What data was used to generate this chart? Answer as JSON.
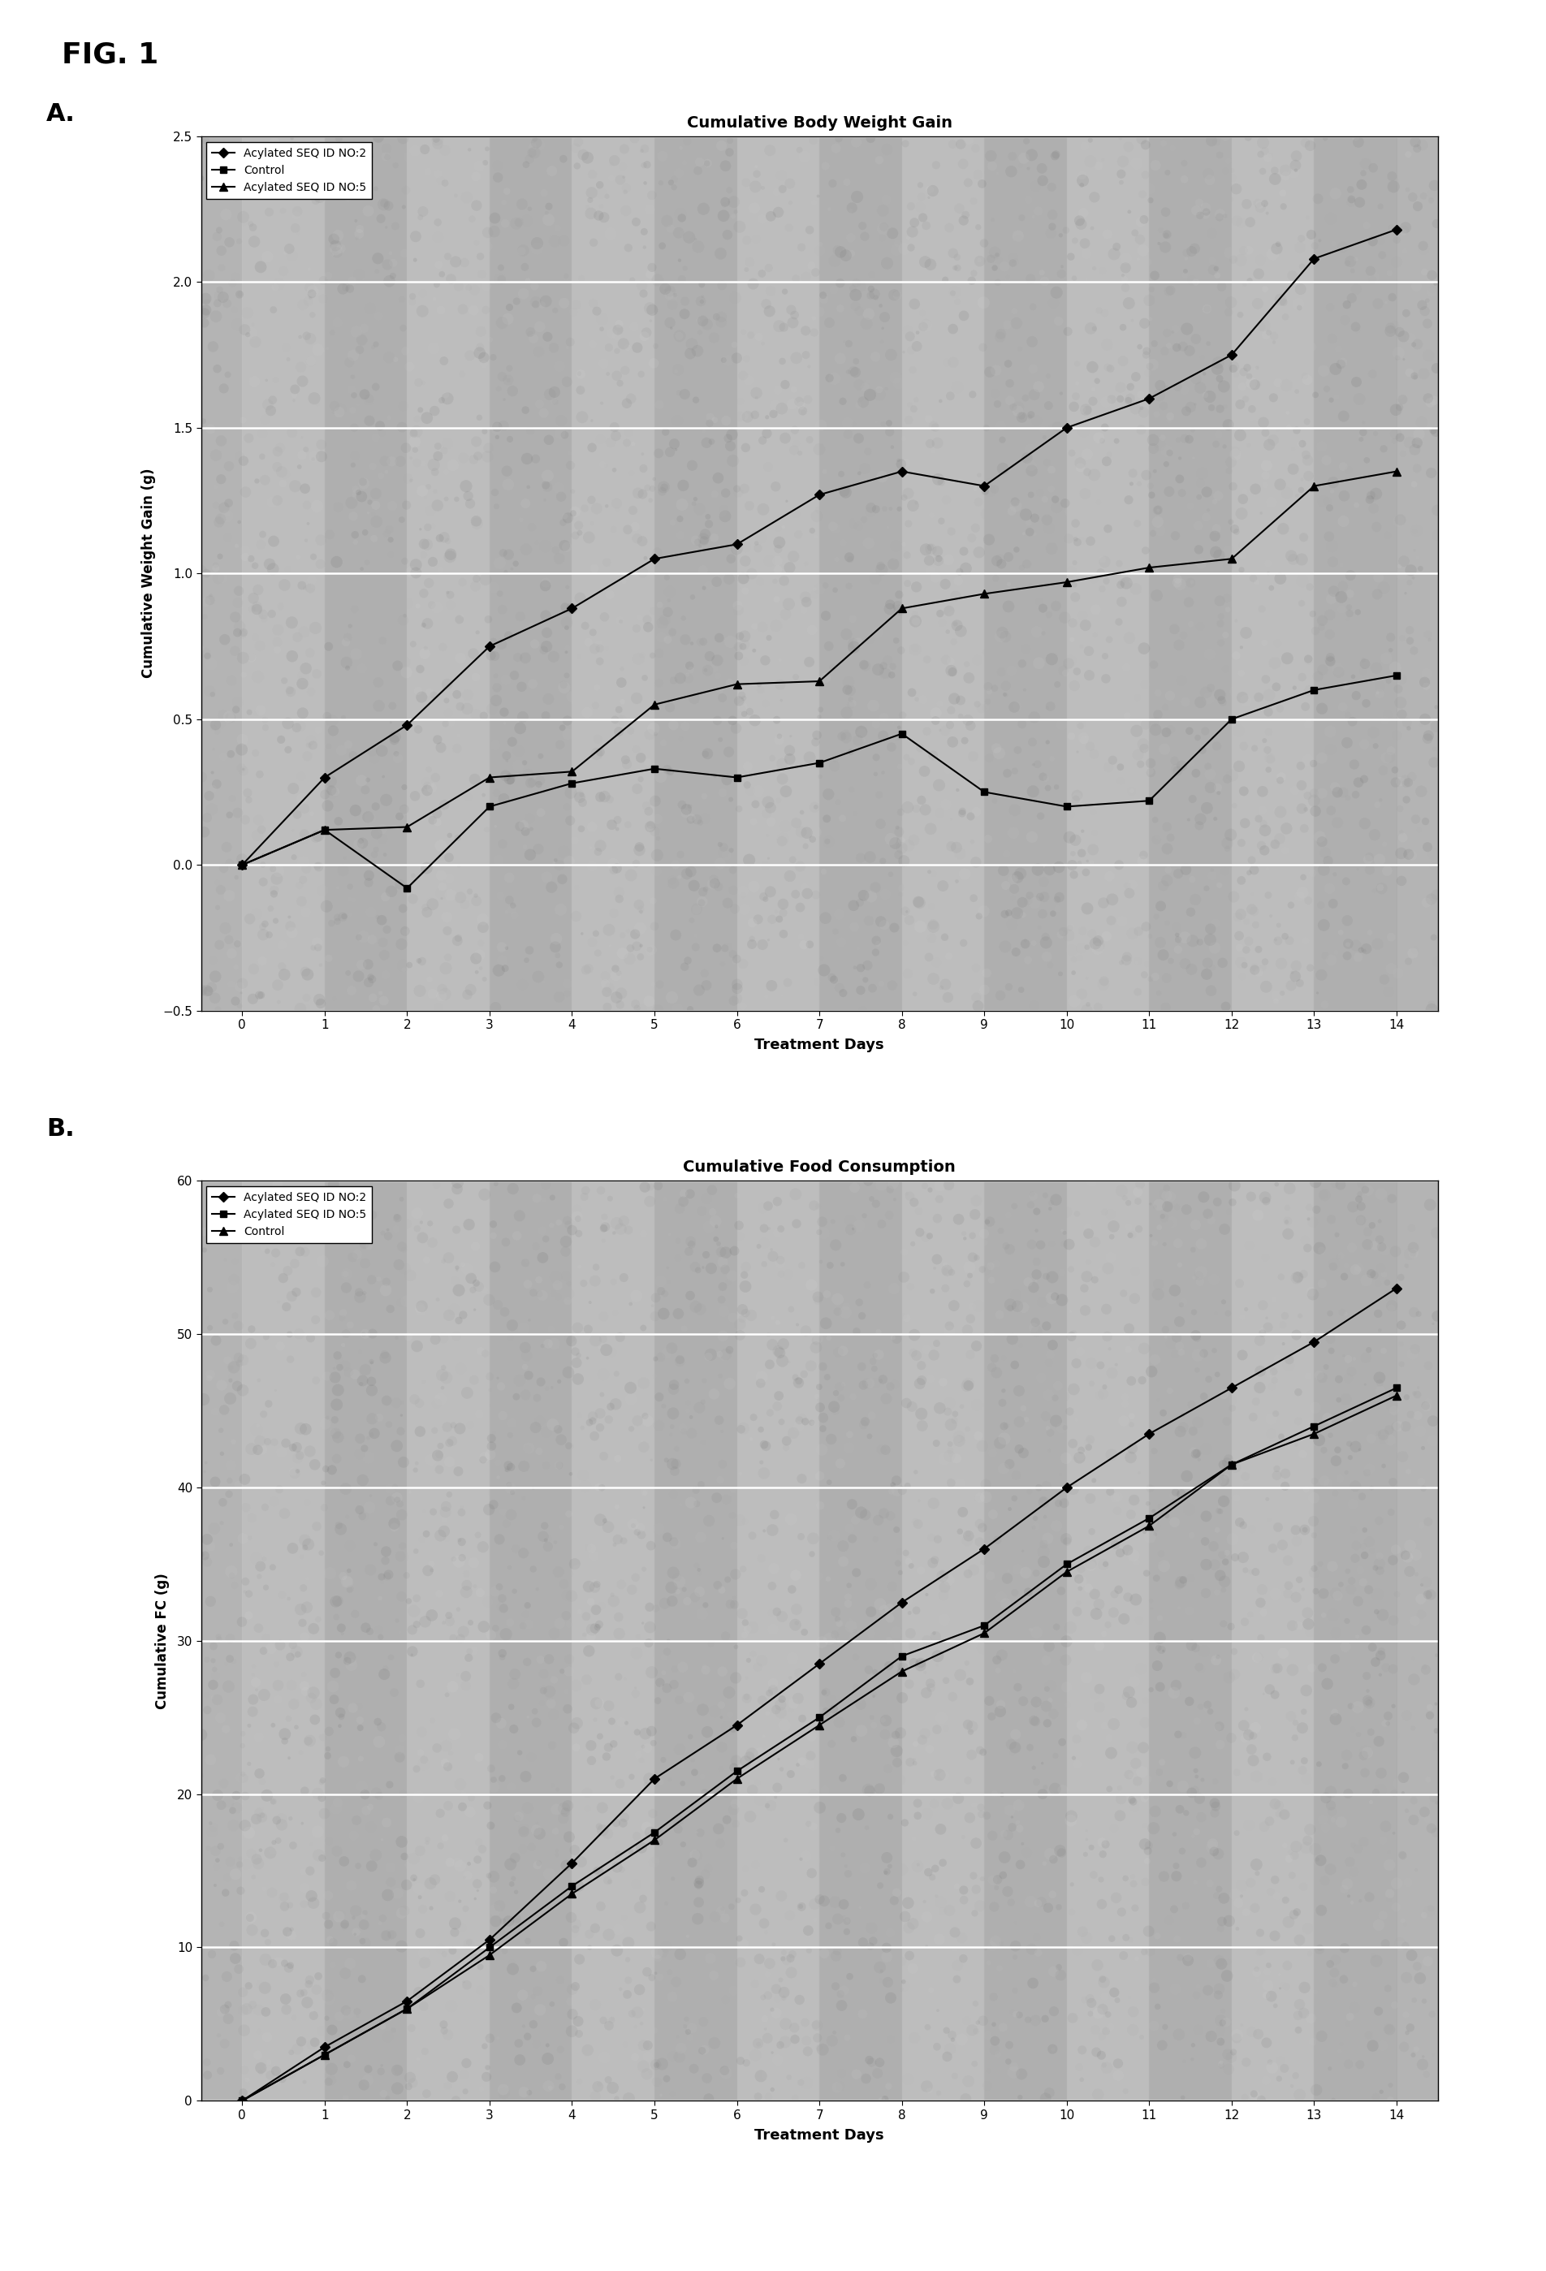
{
  "fig_label": "FIG. 1",
  "panel_A_label": "A.",
  "panel_B_label": "B.",
  "panel_A": {
    "title": "Cumulative Body Weight Gain",
    "xlabel": "Treatment Days",
    "ylabel": "Cumulative Weight Gain (g)",
    "xlim": [
      -0.5,
      14.5
    ],
    "ylim": [
      -0.5,
      2.5
    ],
    "xticks": [
      0,
      1,
      2,
      3,
      4,
      5,
      6,
      7,
      8,
      9,
      10,
      11,
      12,
      13,
      14
    ],
    "yticks": [
      -0.5,
      0.0,
      0.5,
      1.0,
      1.5,
      2.0,
      2.5
    ],
    "legend_order": [
      "seq2",
      "control",
      "seq5"
    ],
    "series": {
      "seq2": {
        "label": "Acylated SEQ ID NO:2",
        "marker": "D",
        "x": [
          0,
          1,
          2,
          3,
          4,
          5,
          6,
          7,
          8,
          9,
          10,
          11,
          12,
          13,
          14
        ],
        "y": [
          0.0,
          0.3,
          0.48,
          0.75,
          0.88,
          1.05,
          1.1,
          1.27,
          1.35,
          1.3,
          1.5,
          1.6,
          1.75,
          2.08,
          2.18
        ]
      },
      "control": {
        "label": "Control",
        "marker": "s",
        "x": [
          0,
          1,
          2,
          3,
          4,
          5,
          6,
          7,
          8,
          9,
          10,
          11,
          12,
          13,
          14
        ],
        "y": [
          0.0,
          0.12,
          -0.08,
          0.2,
          0.28,
          0.33,
          0.3,
          0.35,
          0.45,
          0.25,
          0.2,
          0.22,
          0.5,
          0.6,
          0.65
        ]
      },
      "seq5": {
        "label": "Acylated SEQ ID NO:5",
        "marker": "^",
        "x": [
          0,
          1,
          2,
          3,
          4,
          5,
          6,
          7,
          8,
          9,
          10,
          11,
          12,
          13,
          14
        ],
        "y": [
          0.0,
          0.12,
          0.13,
          0.3,
          0.32,
          0.55,
          0.62,
          0.63,
          0.88,
          0.93,
          0.97,
          1.02,
          1.05,
          1.3,
          1.35
        ]
      }
    }
  },
  "panel_B": {
    "title": "Cumulative Food Consumption",
    "xlabel": "Treatment Days",
    "ylabel": "Cumulative FC (g)",
    "xlim": [
      -0.5,
      14.5
    ],
    "ylim": [
      0,
      60
    ],
    "xticks": [
      0,
      1,
      2,
      3,
      4,
      5,
      6,
      7,
      8,
      9,
      10,
      11,
      12,
      13,
      14
    ],
    "yticks": [
      0,
      10,
      20,
      30,
      40,
      50,
      60
    ],
    "legend_order": [
      "seq2",
      "seq5",
      "control"
    ],
    "series": {
      "seq2": {
        "label": "Acylated SEQ ID NO:2",
        "marker": "D",
        "x": [
          0,
          1,
          2,
          3,
          4,
          5,
          6,
          7,
          8,
          9,
          10,
          11,
          12,
          13,
          14
        ],
        "y": [
          0.0,
          3.5,
          6.5,
          10.5,
          15.5,
          21.0,
          24.5,
          28.5,
          32.5,
          36.0,
          40.0,
          43.5,
          46.5,
          49.5,
          53.0
        ]
      },
      "seq5": {
        "label": "Acylated SEQ ID NO:5",
        "marker": "s",
        "x": [
          0,
          1,
          2,
          3,
          4,
          5,
          6,
          7,
          8,
          9,
          10,
          11,
          12,
          13,
          14
        ],
        "y": [
          0.0,
          3.0,
          6.0,
          10.0,
          14.0,
          17.5,
          21.5,
          25.0,
          29.0,
          31.0,
          35.0,
          38.0,
          41.5,
          44.0,
          46.5
        ]
      },
      "control": {
        "label": "Control",
        "marker": "^",
        "x": [
          0,
          1,
          2,
          3,
          4,
          5,
          6,
          7,
          8,
          9,
          10,
          11,
          12,
          13,
          14
        ],
        "y": [
          0.0,
          3.0,
          6.0,
          9.5,
          13.5,
          17.0,
          21.0,
          24.5,
          28.0,
          30.5,
          34.5,
          37.5,
          41.5,
          43.5,
          46.0
        ]
      }
    }
  }
}
